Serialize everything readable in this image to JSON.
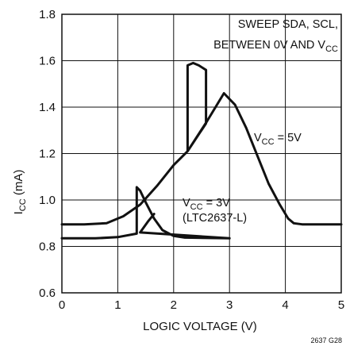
{
  "chart_data": {
    "type": "line",
    "title": "",
    "xlabel": "LOGIC VOLTAGE (V)",
    "ylabel": "I",
    "ylabel_sub": "CC",
    "ylabel_unit": " (mA)",
    "xlim": [
      0,
      5
    ],
    "ylim": [
      0.6,
      1.8
    ],
    "grid": true,
    "x_ticks": [
      "0",
      "1",
      "2",
      "3",
      "4",
      "5"
    ],
    "y_ticks": [
      "0.6",
      "0.8",
      "1.0",
      "1.2",
      "1.4",
      "1.6",
      "1.8"
    ],
    "annotations": {
      "sweep_line1": "SWEEP SDA, SCL,",
      "sweep_line2_pre": "BETWEEN 0V AND V",
      "sweep_line2_sub": "CC",
      "vcc5_pre": "V",
      "vcc5_sub": "CC",
      "vcc5_post": " = 5V",
      "vcc3_pre": "V",
      "vcc3_sub": "CC",
      "vcc3_post": " = 3V",
      "vcc3_line2": "(LTC2637-L)",
      "figure_id": "2637 G28"
    },
    "series": [
      {
        "points": [
          [
            0,
            0.895
          ],
          [
            0.4,
            0.895
          ],
          [
            0.8,
            0.9
          ],
          [
            1.1,
            0.93
          ],
          [
            1.4,
            0.98
          ],
          [
            1.7,
            1.06
          ],
          [
            2.0,
            1.15
          ],
          [
            2.25,
            1.21
          ],
          [
            2.25,
            1.58
          ],
          [
            2.35,
            1.59
          ],
          [
            2.45,
            1.58
          ],
          [
            2.58,
            1.56
          ],
          [
            2.58,
            1.33
          ],
          [
            2.25,
            1.21
          ],
          [
            2.6,
            1.34
          ],
          [
            2.9,
            1.46
          ],
          [
            3.1,
            1.41
          ],
          [
            3.3,
            1.31
          ],
          [
            3.5,
            1.19
          ],
          [
            3.7,
            1.07
          ],
          [
            3.9,
            0.98
          ],
          [
            4.05,
            0.92
          ],
          [
            4.15,
            0.9
          ],
          [
            4.3,
            0.895
          ],
          [
            5,
            0.895
          ]
        ]
      },
      {
        "points": [
          [
            0,
            0.835
          ],
          [
            0.6,
            0.835
          ],
          [
            1.0,
            0.84
          ],
          [
            1.34,
            0.855
          ],
          [
            1.34,
            1.055
          ],
          [
            1.4,
            1.04
          ],
          [
            1.5,
            0.99
          ],
          [
            1.65,
            0.92
          ],
          [
            1.8,
            0.87
          ],
          [
            2.0,
            0.845
          ],
          [
            2.2,
            0.838
          ],
          [
            3.0,
            0.835
          ],
          [
            1.4,
            0.86
          ],
          [
            1.55,
            0.91
          ],
          [
            1.65,
            0.94
          ]
        ]
      }
    ]
  }
}
